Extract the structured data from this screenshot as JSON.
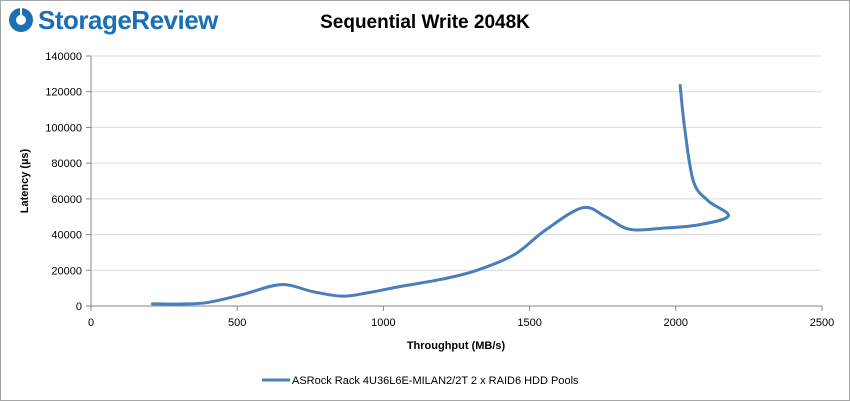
{
  "brand": {
    "name": "StorageReview",
    "color": "#1a6fb5"
  },
  "chart_data": {
    "type": "line",
    "title": "Sequential Write 2048K",
    "xlabel": "Throughput (MB/s)",
    "ylabel": "Latency (µs)",
    "xlim": [
      0,
      2500
    ],
    "ylim": [
      0,
      140000
    ],
    "xticks": [
      0,
      500,
      1000,
      1500,
      2000,
      2500
    ],
    "yticks": [
      0,
      20000,
      40000,
      60000,
      80000,
      100000,
      120000,
      140000
    ],
    "grid": "horizontal",
    "legend_position": "bottom",
    "series": [
      {
        "name": "ASRock Rack 4U36L6E-MILAN2/2T 2 x RAID6 HDD Pools",
        "color": "#4a7ebb",
        "points": [
          [
            210,
            1200
          ],
          [
            310,
            1100
          ],
          [
            400,
            2000
          ],
          [
            520,
            6500
          ],
          [
            650,
            12000
          ],
          [
            760,
            8000
          ],
          [
            860,
            5500
          ],
          [
            950,
            7500
          ],
          [
            1060,
            11000
          ],
          [
            1200,
            15000
          ],
          [
            1320,
            20000
          ],
          [
            1450,
            29000
          ],
          [
            1550,
            42000
          ],
          [
            1680,
            55000
          ],
          [
            1760,
            50000
          ],
          [
            1840,
            43000
          ],
          [
            1950,
            43500
          ],
          [
            2080,
            45500
          ],
          [
            2180,
            50500
          ],
          [
            2110,
            59000
          ],
          [
            2060,
            70000
          ],
          [
            2030,
            100000
          ],
          [
            2015,
            123500
          ]
        ]
      }
    ]
  }
}
